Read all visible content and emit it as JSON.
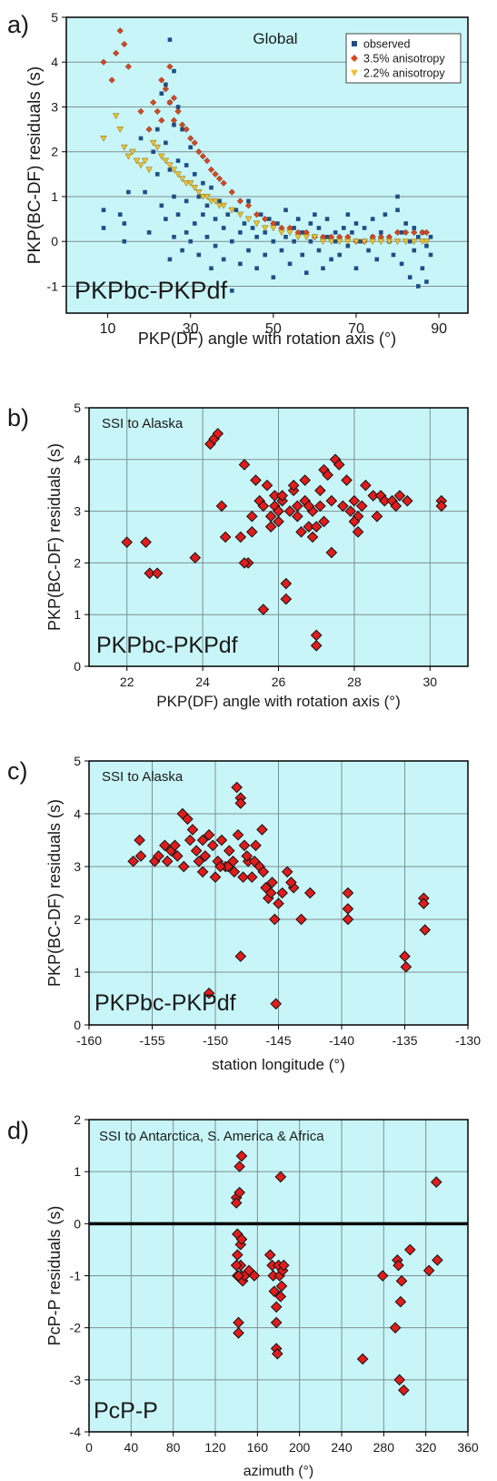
{
  "colors": {
    "panel_bg": "#c8f6f8",
    "grid": "#7f8f90",
    "observed": "#1f4f86",
    "aniso35": "#d14a24",
    "aniso22": "#e8c13a",
    "diamond": "#e01d1d"
  },
  "chart_data": [
    {
      "type": "scatter",
      "panel_label": "a)",
      "title": "Global",
      "annotation": "PKPbc-PKPdf",
      "xlabel": "PKP(DF) angle with rotation axis (°)",
      "ylabel": "PKP(BC-DF) residuals (s)",
      "xlim": [
        0,
        97
      ],
      "ylim": [
        -1.6,
        5
      ],
      "xticks": [
        10,
        30,
        50,
        70,
        90
      ],
      "yticks": [
        -1,
        0,
        1,
        2,
        3,
        4,
        5
      ],
      "grid": "horizontal",
      "legend_position": "top-right",
      "legend": [
        "observed",
        "3.5% anisotropy",
        "2.2% anisotropy"
      ],
      "series": [
        {
          "name": "observed",
          "marker": "square",
          "x": [
            9,
            9,
            13,
            14,
            14,
            15,
            18,
            19,
            20,
            21,
            22,
            22,
            23,
            23,
            24,
            24,
            24,
            25,
            25,
            25,
            25,
            26,
            26,
            26,
            26,
            27,
            27,
            27,
            28,
            28,
            29,
            29,
            29,
            30,
            30,
            31,
            31,
            32,
            32,
            33,
            33,
            34,
            34,
            35,
            35,
            36,
            36,
            37,
            38,
            38,
            39,
            40,
            40,
            41,
            42,
            42,
            43,
            44,
            44,
            45,
            46,
            46,
            47,
            48,
            48,
            49,
            50,
            50,
            51,
            52,
            53,
            53,
            54,
            55,
            55,
            56,
            57,
            57,
            58,
            59,
            59,
            60,
            61,
            61,
            62,
            63,
            63,
            64,
            65,
            65,
            66,
            67,
            68,
            68,
            69,
            70,
            70,
            71,
            72,
            73,
            74,
            74,
            75,
            76,
            77,
            78,
            79,
            80,
            80,
            81,
            81,
            82,
            83,
            83,
            84,
            84,
            85,
            85,
            86,
            86,
            87,
            87,
            88,
            88
          ],
          "y": [
            0.7,
            0.3,
            0.6,
            0.4,
            0.0,
            1.1,
            2.3,
            1.1,
            0.2,
            2.0,
            2.5,
            1.5,
            3.3,
            0.8,
            3.5,
            2.2,
            0.5,
            4.5,
            3.1,
            1.6,
            -0.4,
            3.8,
            2.6,
            1.0,
            0.1,
            3.0,
            1.8,
            0.6,
            2.5,
            -0.2,
            1.7,
            0.9,
            0.2,
            2.1,
            0.0,
            1.5,
            0.4,
            1.0,
            -0.3,
            1.3,
            0.6,
            0.8,
            0.1,
            1.2,
            -0.6,
            0.5,
            -0.1,
            0.9,
            0.3,
            -0.4,
            0.6,
            0.0,
            -1.1,
            0.7,
            0.2,
            -0.5,
            0.4,
            -0.2,
            0.9,
            0.3,
            -0.6,
            0.1,
            0.6,
            -0.3,
            0.2,
            0.5,
            0.0,
            -0.8,
            0.4,
            -0.2,
            0.7,
            0.1,
            -0.5,
            0.3,
            0.0,
            0.5,
            -0.3,
            0.2,
            -0.7,
            0.4,
            0.0,
            0.6,
            -0.2,
            0.3,
            -0.6,
            0.1,
            0.5,
            -0.4,
            0.2,
            0.0,
            -0.3,
            0.3,
            0.6,
            -0.1,
            0.2,
            0.4,
            -0.6,
            0.0,
            0.3,
            -0.2,
            0.1,
            0.5,
            -0.4,
            0.2,
            0.6,
            0.0,
            -0.3,
            1.0,
            0.7,
            0.2,
            -0.5,
            0.4,
            0.0,
            -0.8,
            0.3,
            -0.2,
            0.1,
            -1.0,
            0.2,
            -0.6,
            -0.1,
            -0.9,
            0.1,
            -0.3
          ]
        },
        {
          "name": "3.5% anisotropy",
          "marker": "diamond",
          "x": [
            9,
            11,
            12,
            13,
            14,
            15,
            18,
            20,
            21,
            22,
            23,
            23,
            24,
            25,
            25,
            26,
            26,
            27,
            28,
            29,
            30,
            31,
            32,
            33,
            34,
            35,
            36,
            37,
            38,
            40,
            42,
            44,
            46,
            48,
            50,
            52,
            54,
            56,
            58,
            60,
            62,
            64,
            66,
            68,
            70,
            72,
            74,
            76,
            78,
            80,
            82,
            84,
            86,
            87
          ],
          "y": [
            4.0,
            3.6,
            4.2,
            4.7,
            4.4,
            3.9,
            2.9,
            2.5,
            3.1,
            2.9,
            3.6,
            2.7,
            3.4,
            3.9,
            3.1,
            3.2,
            2.7,
            2.9,
            2.6,
            2.5,
            2.3,
            2.2,
            2.0,
            1.9,
            1.8,
            1.6,
            1.5,
            1.4,
            1.3,
            1.1,
            0.9,
            0.8,
            0.6,
            0.5,
            0.4,
            0.3,
            0.3,
            0.2,
            0.2,
            0.1,
            0.1,
            0.1,
            0.1,
            0.1,
            0.0,
            0.0,
            0.1,
            0.1,
            0.1,
            0.2,
            0.2,
            0.2,
            0.2,
            0.2
          ]
        },
        {
          "name": "2.2% anisotropy",
          "marker": "triangle",
          "x": [
            9,
            12,
            13,
            14,
            15,
            16,
            17,
            18,
            19,
            20,
            21,
            22,
            23,
            24,
            25,
            26,
            27,
            28,
            29,
            30,
            31,
            32,
            33,
            34,
            35,
            36,
            37,
            38,
            40,
            42,
            44,
            46,
            48,
            50,
            52,
            54,
            56,
            58,
            60,
            62,
            64,
            66,
            68,
            70,
            72,
            74,
            76,
            78,
            80,
            82,
            84,
            86,
            87
          ],
          "y": [
            2.3,
            2.8,
            2.5,
            2.1,
            1.9,
            2.0,
            1.8,
            1.7,
            1.8,
            1.6,
            2.2,
            2.1,
            1.9,
            1.8,
            1.7,
            1.6,
            1.5,
            1.4,
            1.3,
            1.3,
            1.2,
            1.1,
            1.0,
            1.0,
            0.9,
            0.9,
            0.8,
            0.8,
            0.7,
            0.6,
            0.5,
            0.4,
            0.3,
            0.3,
            0.2,
            0.2,
            0.1,
            0.1,
            0.1,
            0.0,
            0.0,
            0.0,
            0.0,
            0.0,
            0.0,
            0.0,
            0.0,
            0.0,
            0.0,
            0.0,
            0.0,
            0.0,
            0.0
          ]
        }
      ]
    },
    {
      "type": "scatter",
      "panel_label": "b)",
      "title": "SSI to Alaska",
      "annotation": "PKPbc-PKPdf",
      "xlabel": "PKP(DF) angle with rotation axis (°)",
      "ylabel": "PKP(BC-DF) residuals (s)",
      "xlim": [
        21,
        31
      ],
      "ylim": [
        0,
        5
      ],
      "xticks": [
        22,
        24,
        26,
        28,
        30
      ],
      "yticks": [
        0,
        1,
        2,
        3,
        4,
        5
      ],
      "grid": "both",
      "series": [
        {
          "name": "",
          "marker": "diamond",
          "x": [
            22.0,
            22.5,
            22.6,
            22.8,
            23.8,
            24.2,
            24.3,
            24.4,
            24.5,
            24.6,
            25.0,
            25.1,
            25.2,
            25.3,
            25.4,
            25.5,
            25.6,
            25.7,
            25.8,
            25.9,
            25.9,
            26.0,
            26.0,
            26.1,
            26.2,
            26.3,
            26.4,
            26.5,
            26.5,
            26.6,
            26.7,
            26.7,
            26.8,
            26.9,
            27.0,
            27.0,
            27.1,
            27.1,
            27.2,
            27.3,
            27.4,
            27.5,
            27.6,
            27.7,
            27.8,
            27.9,
            28.0,
            28.1,
            28.2,
            28.3,
            28.5,
            28.6,
            28.7,
            28.8,
            29.0,
            29.1,
            29.2,
            29.4,
            30.3,
            30.3,
            25.1,
            25.6,
            26.2,
            26.4,
            27.0,
            27.4,
            28.0,
            25.8,
            26.8,
            27.2,
            28.1,
            26.1,
            25.3,
            26.9
          ],
          "y": [
            2.4,
            2.4,
            1.8,
            1.8,
            2.1,
            4.3,
            4.4,
            4.5,
            3.1,
            2.5,
            2.5,
            3.9,
            2.0,
            2.6,
            3.6,
            3.2,
            1.1,
            3.5,
            2.9,
            3.1,
            3.3,
            3.0,
            2.8,
            3.2,
            1.6,
            3.0,
            3.4,
            3.1,
            2.9,
            2.6,
            3.2,
            3.6,
            2.7,
            3.0,
            0.6,
            0.4,
            3.1,
            3.4,
            3.8,
            3.7,
            3.2,
            4.0,
            3.9,
            3.1,
            3.6,
            3.0,
            3.2,
            2.9,
            3.1,
            3.5,
            3.3,
            2.9,
            3.3,
            3.2,
            3.2,
            3.1,
            3.3,
            3.2,
            3.2,
            3.1,
            2.0,
            3.1,
            1.3,
            3.5,
            2.7,
            2.2,
            2.8,
            2.7,
            3.1,
            2.8,
            2.6,
            3.3,
            2.9,
            2.5
          ]
        }
      ]
    },
    {
      "type": "scatter",
      "panel_label": "c)",
      "title": "SSI to Alaska",
      "annotation": "PKPbc-PKPdf",
      "xlabel": "station longitude (°)",
      "ylabel": "PKP(BC-DF) residuals (s)",
      "xlim": [
        -160,
        -130
      ],
      "ylim": [
        0,
        5
      ],
      "xticks": [
        -160,
        -155,
        -150,
        -145,
        -140,
        -135,
        -130
      ],
      "yticks": [
        0,
        1,
        2,
        3,
        4,
        5
      ],
      "grid": "both",
      "series": [
        {
          "name": "",
          "marker": "diamond",
          "x": [
            -156.5,
            -156.0,
            -155.9,
            -154.8,
            -154.5,
            -154.0,
            -153.5,
            -153.0,
            -152.6,
            -152.2,
            -151.8,
            -151.5,
            -151.0,
            -150.8,
            -150.5,
            -150.2,
            -149.8,
            -149.5,
            -149.2,
            -148.9,
            -148.6,
            -148.3,
            -148.0,
            -148.0,
            -148.0,
            -147.7,
            -147.4,
            -147.1,
            -146.8,
            -146.5,
            -146.2,
            -146.0,
            -145.8,
            -145.5,
            -145.3,
            -145.0,
            -144.7,
            -144.3,
            -143.8,
            -143.2,
            -142.5,
            -139.5,
            -139.5,
            -139.5,
            -135.0,
            -134.9,
            -133.5,
            -133.5,
            -133.4,
            -150.5,
            -145.2,
            -152.5,
            -151.0,
            -149.0,
            -147.5,
            -146.3,
            -153.2,
            -150.0,
            -148.5,
            -146.9,
            -144.0,
            -152.0,
            -149.6,
            -147.8,
            -145.6,
            -151.3,
            -148.2,
            -153.8
          ],
          "y": [
            3.1,
            3.5,
            3.2,
            3.1,
            3.2,
            3.4,
            3.3,
            3.2,
            4.0,
            3.9,
            3.7,
            3.3,
            3.5,
            3.2,
            3.6,
            3.4,
            3.1,
            3.5,
            3.0,
            3.3,
            3.1,
            4.5,
            4.3,
            4.2,
            1.3,
            3.4,
            3.1,
            2.8,
            3.4,
            3.0,
            2.9,
            2.6,
            2.4,
            2.7,
            2.0,
            2.3,
            2.5,
            2.9,
            2.6,
            2.0,
            2.5,
            2.5,
            2.2,
            2.0,
            1.3,
            1.1,
            2.4,
            2.3,
            1.8,
            0.6,
            0.4,
            3.0,
            2.9,
            3.0,
            3.2,
            3.7,
            3.4,
            2.8,
            2.9,
            3.1,
            2.7,
            3.5,
            3.0,
            2.8,
            2.5,
            3.1,
            3.6,
            3.1
          ]
        }
      ]
    },
    {
      "type": "scatter",
      "panel_label": "d)",
      "title": "SSI to Antarctica, S. America & Africa",
      "annotation": "PcP-P",
      "xlabel": "azimuth (°)",
      "ylabel": "PcP-P residuals (s)",
      "xlim": [
        0,
        360
      ],
      "ylim": [
        -4,
        2
      ],
      "xticks": [
        0,
        40,
        80,
        120,
        160,
        200,
        240,
        280,
        320,
        360
      ],
      "yticks": [
        -4,
        -3,
        -2,
        -1,
        0,
        1,
        2
      ],
      "grid": "both",
      "zero_line": true,
      "series": [
        {
          "name": "",
          "marker": "diamond",
          "x": [
            140,
            140,
            141,
            141,
            141,
            142,
            142,
            143,
            143,
            144,
            144,
            145,
            145,
            146,
            148,
            152,
            157,
            172,
            174,
            175,
            176,
            178,
            178,
            179,
            180,
            181,
            182,
            183,
            184,
            185,
            260,
            279,
            291,
            293,
            294,
            295,
            296,
            297,
            299,
            305,
            323,
            330,
            331,
            140,
            142,
            145,
            178,
            182
          ],
          "y": [
            0.5,
            0.4,
            -0.2,
            -0.6,
            -1.0,
            -1.9,
            -2.1,
            1.1,
            0.6,
            -0.4,
            -0.8,
            1.3,
            -1.0,
            -1.1,
            -1.0,
            -0.9,
            -1.0,
            -0.6,
            -0.8,
            -1.0,
            -1.3,
            -1.6,
            -2.4,
            -2.5,
            -0.8,
            -1.0,
            0.9,
            -1.2,
            -0.9,
            -0.8,
            -2.6,
            -1.0,
            -2.0,
            -0.7,
            -0.8,
            -3.0,
            -1.5,
            -1.1,
            -3.2,
            -0.5,
            -0.9,
            0.8,
            -0.7,
            -0.8,
            -1.0,
            -0.3,
            -1.9,
            -1.4
          ]
        }
      ]
    }
  ]
}
